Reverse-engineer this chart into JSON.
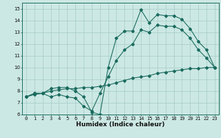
{
  "xlabel": "Humidex (Indice chaleur)",
  "bg_color": "#cce8e4",
  "line_color": "#1a6b5e",
  "grid_color": "#aacfca",
  "xlim": [
    -0.5,
    23.5
  ],
  "ylim": [
    6,
    15.5
  ],
  "xticks": [
    0,
    1,
    2,
    3,
    4,
    5,
    6,
    7,
    8,
    9,
    10,
    11,
    12,
    13,
    14,
    15,
    16,
    17,
    18,
    19,
    20,
    21,
    22,
    23
  ],
  "yticks": [
    6,
    7,
    8,
    9,
    10,
    11,
    12,
    13,
    14,
    15
  ],
  "curve1_x": [
    0,
    1,
    2,
    3,
    4,
    5,
    6,
    7,
    8,
    9,
    10,
    11,
    12,
    13,
    14,
    15,
    16,
    17,
    18,
    19,
    20,
    21,
    22,
    23
  ],
  "curve1_y": [
    7.5,
    7.8,
    7.8,
    8.2,
    8.3,
    8.3,
    8.0,
    7.5,
    6.2,
    6.0,
    10.0,
    12.5,
    13.1,
    13.1,
    14.9,
    13.8,
    14.5,
    14.4,
    14.4,
    14.1,
    13.3,
    12.2,
    11.5,
    10.0
  ],
  "curve2_x": [
    0,
    1,
    2,
    3,
    4,
    5,
    6,
    7,
    8,
    9,
    10,
    11,
    12,
    13,
    14,
    15,
    16,
    17,
    18,
    19,
    20,
    21,
    22,
    23
  ],
  "curve2_y": [
    7.5,
    7.8,
    7.8,
    7.5,
    7.7,
    7.5,
    7.4,
    6.7,
    6.3,
    7.8,
    9.2,
    10.6,
    11.5,
    12.0,
    13.2,
    13.0,
    13.6,
    13.5,
    13.5,
    13.2,
    12.5,
    11.5,
    10.8,
    10.0
  ],
  "curve3_x": [
    0,
    1,
    2,
    3,
    4,
    5,
    6,
    7,
    8,
    9,
    10,
    11,
    12,
    13,
    14,
    15,
    16,
    17,
    18,
    19,
    20,
    21,
    22,
    23
  ],
  "curve3_y": [
    7.5,
    7.7,
    7.8,
    8.0,
    8.1,
    8.2,
    8.2,
    8.3,
    8.3,
    8.4,
    8.5,
    8.7,
    8.9,
    9.1,
    9.2,
    9.3,
    9.5,
    9.6,
    9.7,
    9.8,
    9.9,
    9.9,
    10.0,
    10.0
  ],
  "tick_fontsize": 5.0,
  "xlabel_fontsize": 6.5,
  "marker_size": 2.0,
  "linewidth": 0.8
}
